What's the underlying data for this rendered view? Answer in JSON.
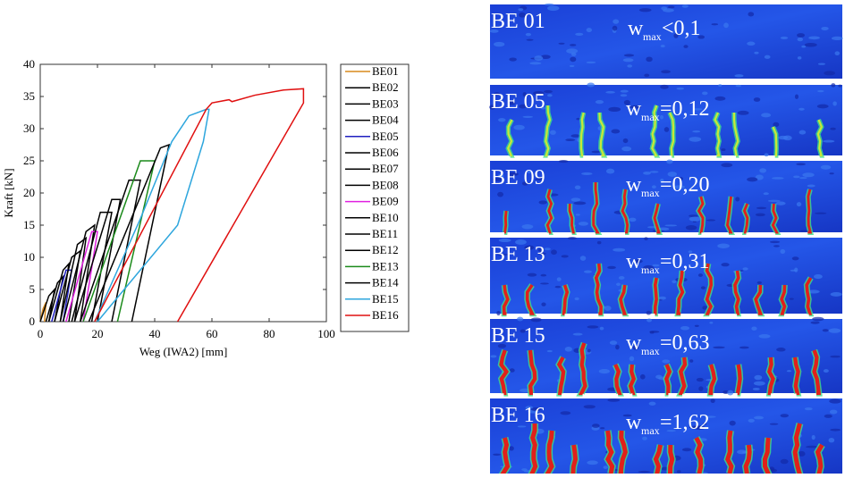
{
  "chart_data": {
    "type": "line",
    "xlabel": "Weg (IWA2) [mm]",
    "ylabel": "Kraft [kN]",
    "xlim": [
      0,
      100
    ],
    "ylim": [
      0,
      40
    ],
    "xticks": [
      0,
      20,
      40,
      60,
      80,
      100
    ],
    "yticks": [
      0,
      5,
      10,
      15,
      20,
      25,
      30,
      35,
      40
    ],
    "grid": false,
    "legend": "outside-right",
    "series": [
      {
        "name": "BE01",
        "color": "#d98a1c",
        "x": [
          0,
          1,
          2,
          1.5
        ],
        "values": [
          0,
          2,
          3,
          0
        ]
      },
      {
        "name": "BE02",
        "color": "#000000",
        "x": [
          0,
          3,
          5,
          3
        ],
        "values": [
          0,
          4,
          5,
          0
        ]
      },
      {
        "name": "BE03",
        "color": "#000000",
        "x": [
          2,
          6,
          8,
          5
        ],
        "values": [
          0,
          6,
          7,
          0
        ]
      },
      {
        "name": "BE04",
        "color": "#000000",
        "x": [
          3,
          8,
          10,
          7
        ],
        "values": [
          0,
          8,
          9,
          0
        ]
      },
      {
        "name": "BE05",
        "color": "#2020c0",
        "x": [
          4,
          9,
          11,
          8
        ],
        "values": [
          0,
          8,
          8,
          0
        ]
      },
      {
        "name": "BE06",
        "color": "#000000",
        "x": [
          5,
          11,
          14,
          10
        ],
        "values": [
          0,
          10,
          11,
          0
        ]
      },
      {
        "name": "BE07",
        "color": "#000000",
        "x": [
          7,
          13,
          16,
          12
        ],
        "values": [
          0,
          12,
          13,
          0
        ]
      },
      {
        "name": "BE08",
        "color": "#000000",
        "x": [
          8,
          16,
          19,
          14
        ],
        "values": [
          0,
          14,
          15,
          0
        ]
      },
      {
        "name": "BE09",
        "color": "#e020e0",
        "x": [
          9,
          18,
          20,
          15
        ],
        "values": [
          0,
          14,
          14,
          0
        ]
      },
      {
        "name": "BE10",
        "color": "#000000",
        "x": [
          11,
          21,
          25,
          18
        ],
        "values": [
          0,
          17,
          17,
          0
        ]
      },
      {
        "name": "BE11",
        "color": "#000000",
        "x": [
          12,
          25,
          28,
          20
        ],
        "values": [
          0,
          19,
          19,
          0
        ]
      },
      {
        "name": "BE12",
        "color": "#000000",
        "x": [
          14,
          31,
          35,
          25
        ],
        "values": [
          0,
          22,
          22,
          0
        ]
      },
      {
        "name": "BE13",
        "color": "#1a8a1a",
        "x": [
          15,
          35,
          40,
          27
        ],
        "values": [
          0,
          25,
          25,
          0
        ]
      },
      {
        "name": "BE14",
        "color": "#000000",
        "x": [
          17,
          42,
          45,
          32
        ],
        "values": [
          0,
          27,
          27.5,
          0
        ]
      },
      {
        "name": "BE15",
        "color": "#2ea6dd",
        "x": [
          19,
          35,
          46,
          52,
          58,
          59,
          57,
          48,
          20
        ],
        "values": [
          0,
          16,
          28,
          32,
          33,
          33,
          28,
          15,
          0
        ]
      },
      {
        "name": "BE16",
        "color": "#e01010",
        "x": [
          19,
          58,
          60,
          66,
          67,
          75,
          85,
          92,
          92,
          48
        ],
        "values": [
          0,
          33,
          34,
          34.5,
          34.2,
          35.2,
          36,
          36.2,
          34,
          0
        ]
      }
    ]
  },
  "panels": [
    {
      "label": "BE 01",
      "symbol": "w",
      "subscript": "max",
      "value": "<0,1"
    },
    {
      "label": "BE 05",
      "symbol": "w",
      "subscript": "max",
      "value": "=0,12"
    },
    {
      "label": "BE 09",
      "symbol": "w",
      "subscript": "max",
      "value": "=0,20"
    },
    {
      "label": "BE 13",
      "symbol": "w",
      "subscript": "max",
      "value": "=0,31"
    },
    {
      "label": "BE 15",
      "symbol": "w",
      "subscript": "max",
      "value": "=0,63"
    },
    {
      "label": "BE 16",
      "symbol": "w",
      "subscript": "max",
      "value": "=1,62"
    }
  ]
}
